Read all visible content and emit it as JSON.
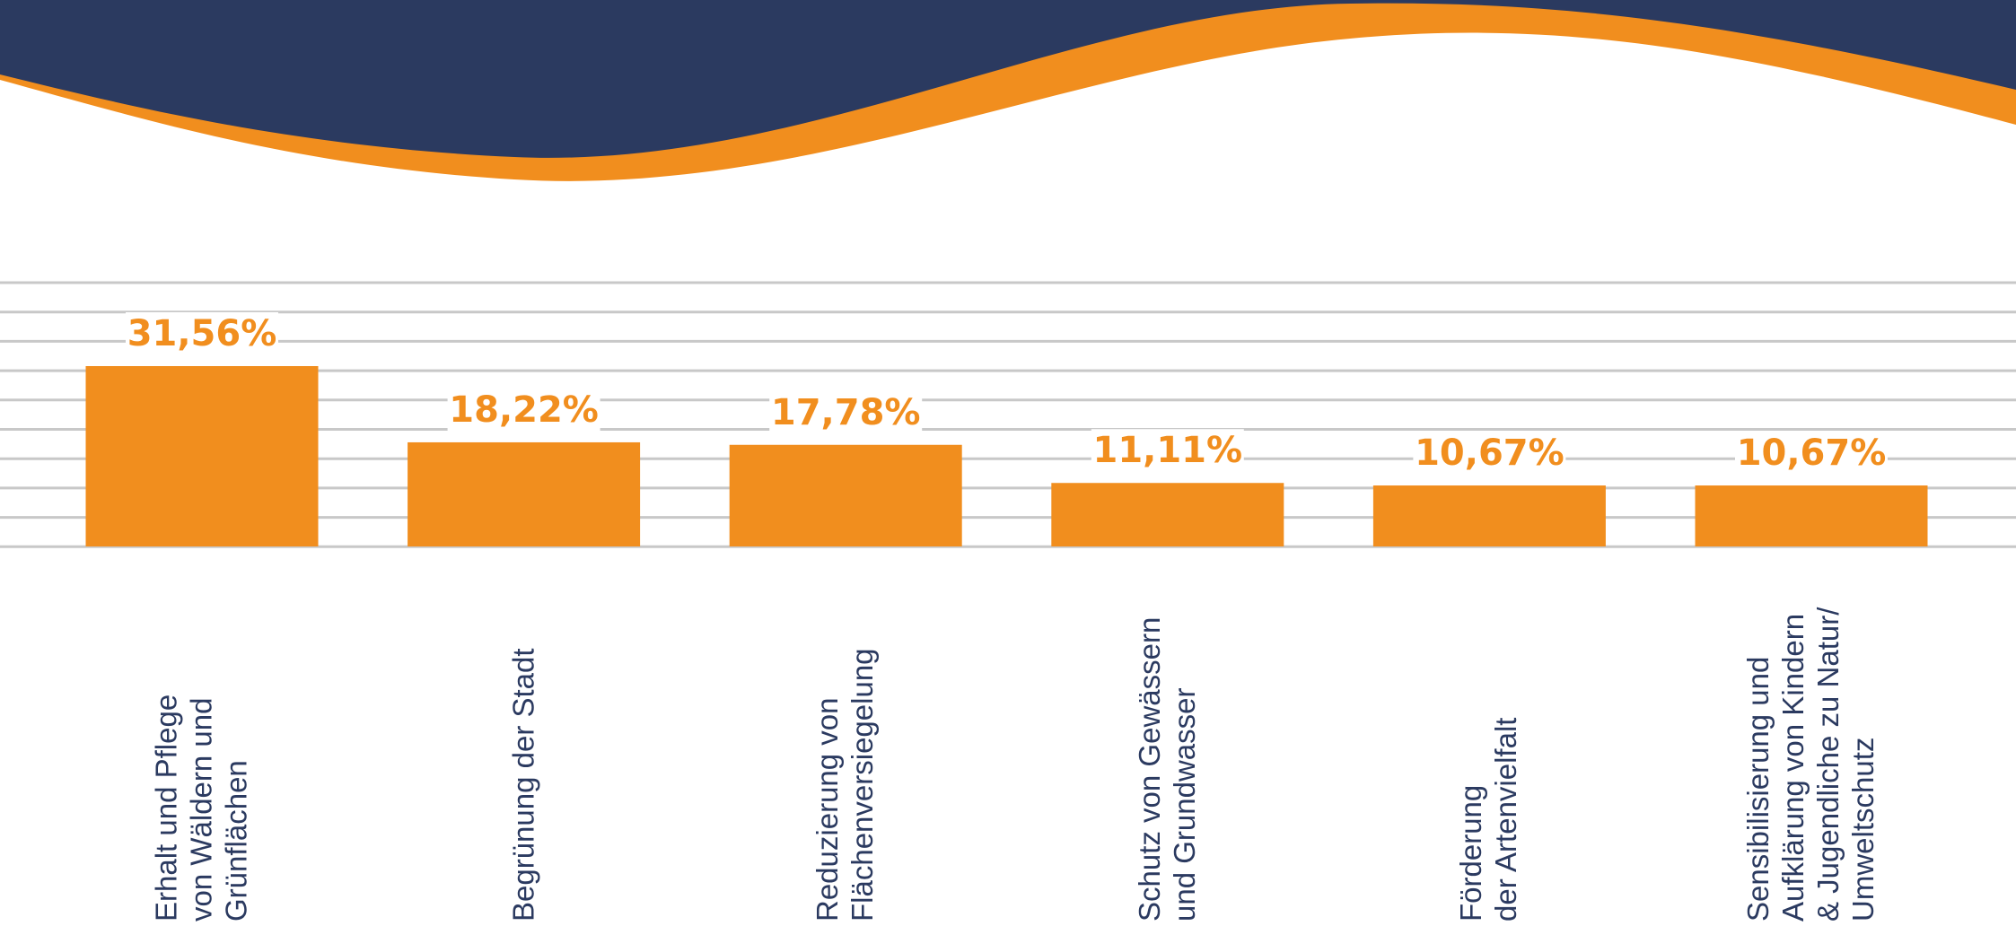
{
  "chart_data": {
    "type": "bar",
    "categories": [
      "Erhalt und Pflege\nvon Wäldern und\nGrünflächen",
      "Begrünung der Stadt",
      "Reduzierung von\nFlächenversiegelung",
      "Schutz von Gewässern\nund Grundwasser",
      "Förderung\nder Artenvielfalt",
      "Sensibilisierung und\nAufklärung von Kindern\n& Jugendliche zu Natur/\nUmweltschutz"
    ],
    "values": [
      31.56,
      18.22,
      17.78,
      11.11,
      10.67,
      10.67
    ],
    "value_labels": [
      "31,56%",
      "18,22%",
      "17,78%",
      "11,11%",
      "10,67%",
      "10,67%"
    ],
    "color": "#f18e1e"
  }
}
